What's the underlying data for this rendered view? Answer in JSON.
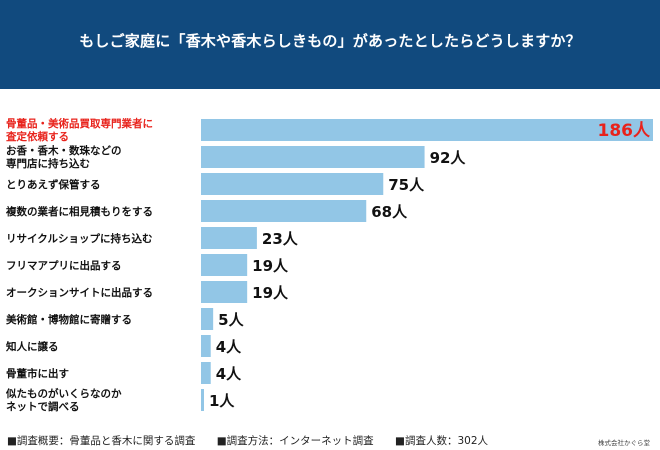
{
  "title": "もしご家庭に「香木や香木らしきもの」があったとしたらどうしますか？",
  "colors": {
    "header_bg": "#114a7e",
    "bar": "#92c6e6",
    "highlight": "#e8231c",
    "text": "#111111"
  },
  "chart_data": {
    "type": "bar",
    "orientation": "horizontal",
    "unit": "人",
    "categories": [
      [
        "骨董品・美術品買取専門業者に",
        "査定依頼する"
      ],
      [
        "お香・香木・数珠などの",
        "専門店に持ち込む"
      ],
      [
        "とりあえず保管する"
      ],
      [
        "複数の業者に相見積もりをする"
      ],
      [
        "リサイクルショップに持ち込む"
      ],
      [
        "フリマアプリに出品する"
      ],
      [
        "オークションサイトに出品する"
      ],
      [
        "美術館・博物館に寄贈する"
      ],
      [
        "知人に譲る"
      ],
      [
        "骨董市に出す"
      ],
      [
        "似たものがいくらなのか",
        "ネットで調べる"
      ]
    ],
    "values": [
      186,
      92,
      75,
      68,
      23,
      19,
      19,
      5,
      4,
      4,
      1
    ],
    "highlight_index": 0
  },
  "footer": {
    "item1": "■調査概要：骨董品と香木に関する調査",
    "item2": "■調査方法：インターネット調査",
    "item3": "■調査人数：302人",
    "credit": "株式会社かぐら堂"
  }
}
